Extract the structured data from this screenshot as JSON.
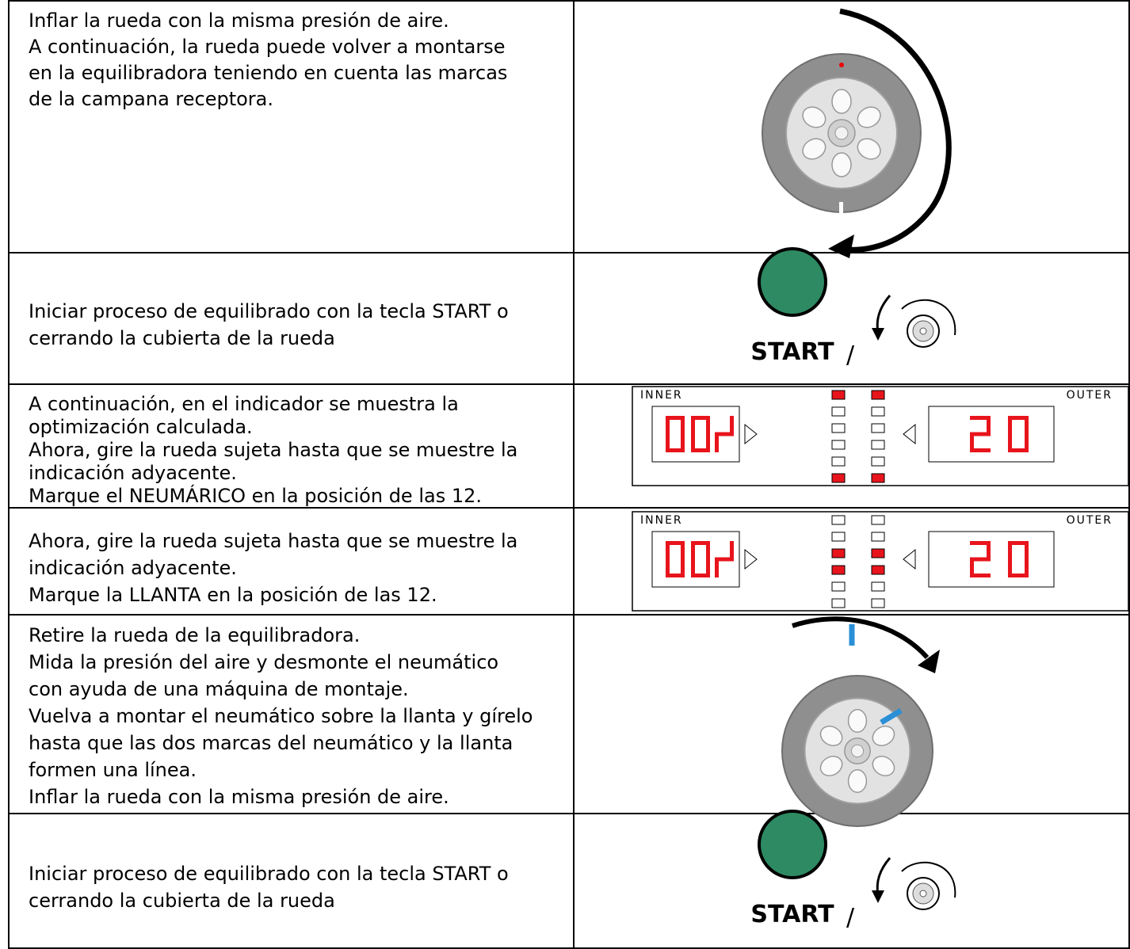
{
  "rows": [
    {
      "text": [
        "Inflar la rueda con la misma presión de aire.",
        "A continuación, la rueda puede volver a montarse",
        "en la equilibradora teniendo en cuenta las marcas",
        "de la campana receptora."
      ]
    },
    {
      "text": [
        "Iniciar proceso de equilibrado con la tecla START o",
        "cerrando la cubierta de la rueda"
      ],
      "button_label": "START",
      "separator": "/"
    },
    {
      "text": [
        "A continuación, en el indicador se muestra la",
        "optimización calculada.",
        "Ahora, gire la rueda sujeta hasta que se muestre la",
        "indicación adyacente.",
        "Marque el NEUMÁRICO en la posición de las 12."
      ],
      "display": {
        "inner_label": "INNER",
        "outer_label": "OUTER",
        "inner_value": "00",
        "outer_value": "20"
      }
    },
    {
      "text": [
        "Ahora, gire la rueda sujeta hasta que se muestre la",
        "indicación adyacente.",
        "Marque la LLANTA en la posición de las 12."
      ],
      "display": {
        "inner_label": "INNER",
        "outer_label": "OUTER",
        "inner_value": "00",
        "outer_value": "20"
      }
    },
    {
      "text": [
        "Retire la rueda de la equilibradora.",
        "Mida la presión del aire y desmonte el neumático",
        "con ayuda de una máquina de montaje.",
        "Vuelva a montar el neumático sobre la llanta y gírelo",
        "hasta que las dos marcas del neumático y la llanta",
        "formen una línea.",
        "Inflar la rueda con la misma presión de aire."
      ]
    },
    {
      "text": [
        "Iniciar proceso de equilibrado con la tecla START o",
        "cerrando la cubierta de la rueda"
      ],
      "button_label": "START",
      "separator": "/"
    }
  ]
}
